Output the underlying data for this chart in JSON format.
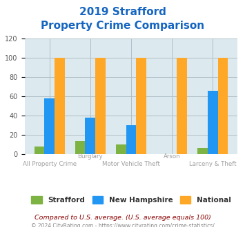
{
  "title_line1": "2019 Strafford",
  "title_line2": "Property Crime Comparison",
  "title_color": "#1565c0",
  "categories": [
    "All Property Crime",
    "Burglary",
    "Motor Vehicle Theft",
    "Arson",
    "Larceny & Theft"
  ],
  "cat_line1": [
    "All Property Crime",
    "Burglary",
    "Motor Vehicle Theft",
    "Arson",
    "Larceny & Theft"
  ],
  "strafford": [
    8,
    14,
    10,
    0,
    7
  ],
  "new_hampshire": [
    58,
    38,
    30,
    0,
    66
  ],
  "national": [
    100,
    100,
    100,
    100,
    100
  ],
  "strafford_color": "#7cb342",
  "nh_color": "#2196f3",
  "national_color": "#ffa726",
  "ylim": [
    0,
    120
  ],
  "yticks": [
    0,
    20,
    40,
    60,
    80,
    100,
    120
  ],
  "grid_color": "#b0bec5",
  "bg_color": "#dce9ee",
  "plot_bg": "#dce9ee",
  "legend_labels": [
    "Strafford",
    "New Hampshire",
    "National"
  ],
  "footnote1": "Compared to U.S. average. (U.S. average equals 100)",
  "footnote2": "© 2024 CityRating.com - https://www.cityrating.com/crime-statistics/",
  "footnote1_color": "#8b0000",
  "footnote2_color": "#888888",
  "xlabel_color": "#9e9e9e",
  "bar_width": 0.25
}
